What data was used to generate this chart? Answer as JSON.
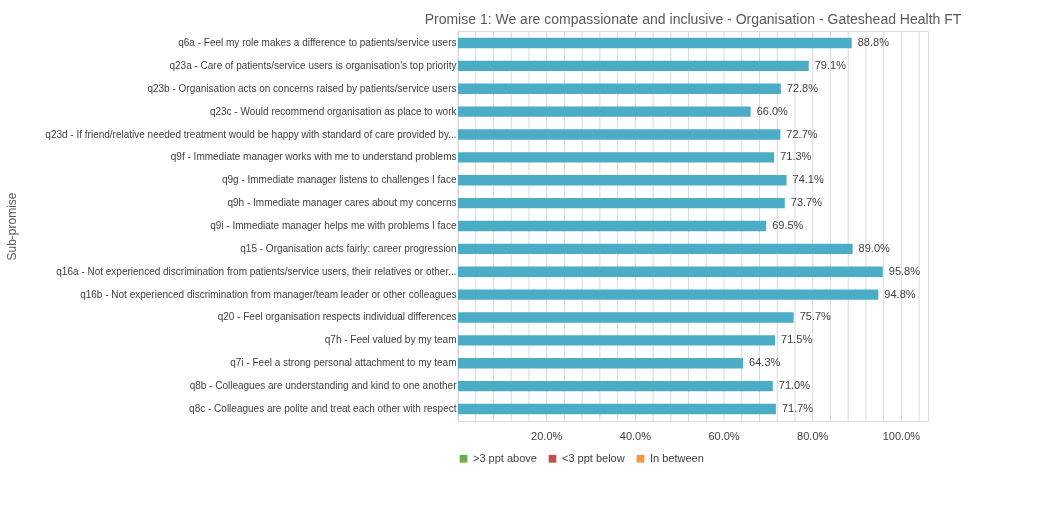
{
  "chart_data": {
    "type": "bar",
    "orientation": "horizontal",
    "title": "Promise 1: We are compassionate and inclusive - Organisation - Gateshead Health FT",
    "ylabel": "Sub-promise",
    "categories": [
      "q6a - Feel my role makes a difference to patients/service users",
      "q23a - Care of patients/service users is organisation's top priority",
      "q23b - Organisation acts on concerns raised by patients/service users",
      "q23c - Would recommend organisation as place to work",
      "q23d - If friend/relative needed treatment would be happy with standard of care provided by...",
      "q9f - Immediate manager works with me to understand problems",
      "q9g - Immediate manager listens to challenges I face",
      "q9h - Immediate manager cares about my concerns",
      "q9i - Immediate manager helps me with problems I face",
      "q15 - Organisation acts fairly: career progression",
      "q16a - Not experienced discrimination from patients/service users, their relatives or other...",
      "q16b - Not experienced discrimination from manager/team leader or other colleagues",
      "q20 - Feel organisation respects individual differences",
      "q7h - Feel valued by my team",
      "q7i - Feel a strong personal attachment to my team",
      "q8b - Colleagues are understanding and kind to one another",
      "q8c - Colleagues are polite and treat each other with respect"
    ],
    "series": [
      {
        "color": "#4bacc6",
        "values": [
          88.8,
          79.1,
          72.8,
          66.0,
          72.7,
          71.3,
          74.1,
          73.7,
          69.5,
          89.0,
          95.8,
          94.8,
          75.7,
          71.5,
          64.3,
          71.0,
          71.7
        ],
        "value_labels": [
          "88.8%",
          "79.1%",
          "72.8%",
          "66.0%",
          "72.7%",
          "71.3%",
          "74.1%",
          "73.7%",
          "69.5%",
          "89.0%",
          "95.8%",
          "94.8%",
          "75.7%",
          "71.5%",
          "64.3%",
          "71.0%",
          "71.7%"
        ]
      },
      {
        "name": ">3 ppt above",
        "color": "#70ad47",
        "values": [
          null,
          null,
          null,
          null,
          null,
          null,
          null,
          null,
          null,
          null,
          null,
          null,
          null,
          null,
          null,
          null,
          null
        ]
      },
      {
        "name": "<3 ppt below",
        "color": "#c0504d",
        "values": [
          null,
          null,
          null,
          null,
          null,
          null,
          null,
          null,
          null,
          null,
          null,
          null,
          null,
          null,
          null,
          null,
          null
        ]
      },
      {
        "name": "In between",
        "color": "#f79646",
        "values": [
          null,
          null,
          null,
          null,
          null,
          null,
          null,
          null,
          null,
          null,
          null,
          null,
          null,
          null,
          null,
          null,
          null
        ]
      }
    ],
    "xlim": [
      0,
      106
    ],
    "xticks": [
      {
        "value": 0,
        "label": null
      },
      {
        "value": 4,
        "label": null
      },
      {
        "value": 8,
        "label": null
      },
      {
        "value": 12,
        "label": null
      },
      {
        "value": 16,
        "label": null
      },
      {
        "value": 20,
        "label": "20.0%"
      },
      {
        "value": 24,
        "label": null
      },
      {
        "value": 28,
        "label": null
      },
      {
        "value": 32,
        "label": null
      },
      {
        "value": 36,
        "label": null
      },
      {
        "value": 40,
        "label": "40.0%"
      },
      {
        "value": 44,
        "label": null
      },
      {
        "value": 48,
        "label": null
      },
      {
        "value": 52,
        "label": null
      },
      {
        "value": 56,
        "label": null
      },
      {
        "value": 60,
        "label": "60.0%"
      },
      {
        "value": 64,
        "label": null
      },
      {
        "value": 68,
        "label": null
      },
      {
        "value": 72,
        "label": null
      },
      {
        "value": 76,
        "label": null
      },
      {
        "value": 80,
        "label": "80.0%"
      },
      {
        "value": 84,
        "label": null
      },
      {
        "value": 88,
        "label": null
      },
      {
        "value": 92,
        "label": null
      },
      {
        "value": 96,
        "label": null
      },
      {
        "value": 100,
        "label": "100.0%"
      },
      {
        "value": 104,
        "label": null
      }
    ],
    "grid": "x",
    "legend": "bottom"
  }
}
